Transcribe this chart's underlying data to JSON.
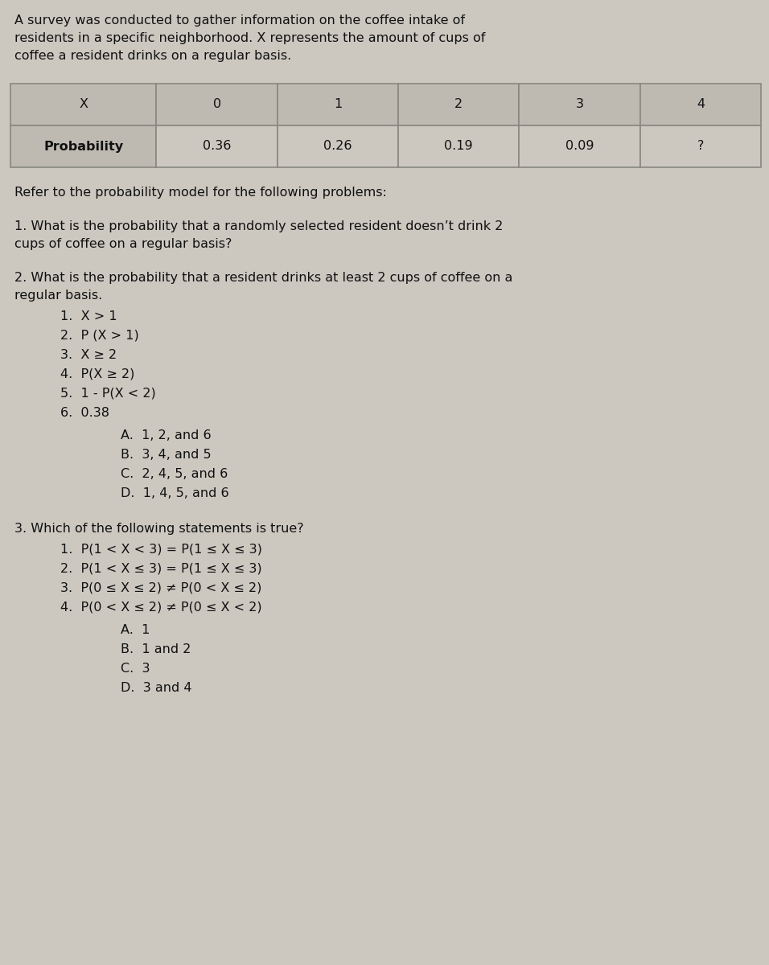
{
  "bg_color": "#ccc8c0",
  "text_color": "#111111",
  "intro_text_lines": [
    "A survey was conducted to gather information on the coffee intake of",
    "residents in a specific neighborhood. X represents the amount of cups of",
    "coffee a resident drinks on a regular basis."
  ],
  "table": {
    "headers": [
      "X",
      "0",
      "1",
      "2",
      "3",
      "4"
    ],
    "row_label": "Probability",
    "values": [
      "0.36",
      "0.26",
      "0.19",
      "0.09",
      "?"
    ],
    "header_bg": "#bebab2",
    "cell_bg": "#ccc8c0",
    "border_color": "#888880"
  },
  "refer_text": "Refer to the probability model for the following problems:",
  "q1_text_lines": [
    "1. What is the probability that a randomly selected resident doesn’t drink 2",
    "cups of coffee on a regular basis?"
  ],
  "q2_text_lines": [
    "2. What is the probability that a resident drinks at least 2 cups of coffee on a",
    "regular basis."
  ],
  "q2_items": [
    "1.  X > 1",
    "2.  P (X > 1)",
    "3.  X ≥ 2",
    "4.  P(X ≥ 2)",
    "5.  1 - P(X < 2)",
    "6.  0.38"
  ],
  "q2_choices": [
    "A.  1, 2, and 6",
    "B.  3, 4, and 5",
    "C.  2, 4, 5, and 6",
    "D.  1, 4, 5, and 6"
  ],
  "q3_text": "3. Which of the following statements is true?",
  "q3_items": [
    "1.  P(1 < X < 3) = P(1 ≤ X ≤ 3)",
    "2.  P(1 < X ≤ 3) = P(1 ≤ X ≤ 3)",
    "3.  P(0 ≤ X ≤ 2) ≠ P(0 < X ≤ 2)",
    "4.  P(0 < X ≤ 2) ≠ P(0 ≤ X < 2)"
  ],
  "q3_choices": [
    "A.  1",
    "B.  1 and 2",
    "C.  3",
    "D.  3 and 4"
  ],
  "font_size": 11.5,
  "font_size_table": 11.5
}
